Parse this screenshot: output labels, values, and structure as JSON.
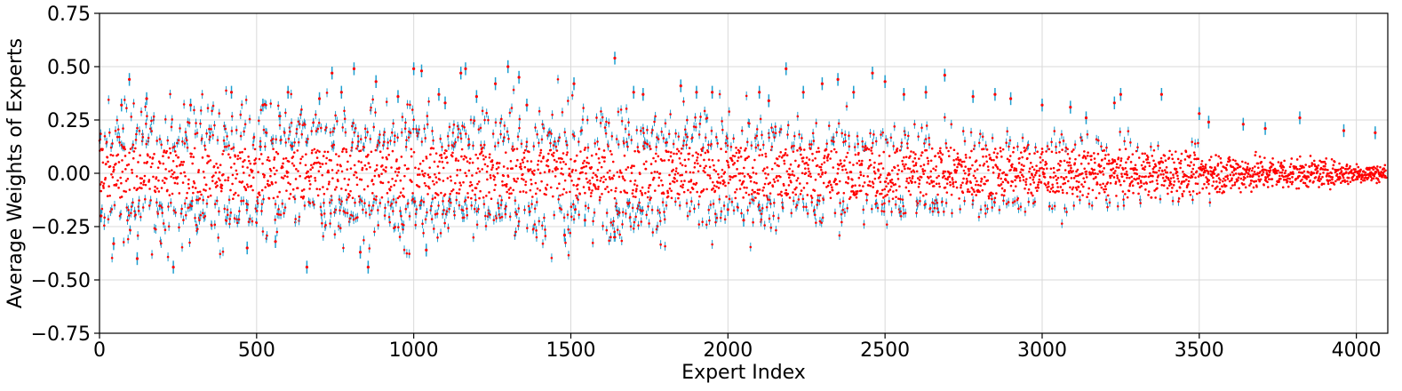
{
  "chart_data": {
    "type": "scatter",
    "title": "",
    "xlabel": "Expert Index",
    "ylabel": "Average Weights of Experts",
    "xlim": [
      0,
      4100
    ],
    "ylim": [
      -0.75,
      0.75
    ],
    "grid": true,
    "x_ticks": [
      0,
      500,
      1000,
      1500,
      2000,
      2500,
      3000,
      3500,
      4000
    ],
    "x_tick_labels": [
      "0",
      "500",
      "1000",
      "1500",
      "2000",
      "2500",
      "3000",
      "3500",
      "4000"
    ],
    "y_ticks": [
      0.75,
      0.5,
      0.25,
      0.0,
      -0.25,
      -0.5,
      -0.75
    ],
    "y_tick_labels": [
      "0.75",
      "0.50",
      "0.25",
      "0.00",
      "−0.25",
      "−0.50",
      "−0.75"
    ],
    "marker_color": "#ff0000",
    "errorbar_color": "#1f9fd0",
    "series": [
      {
        "x": [
          5,
          45,
          70,
          95,
          120,
          150,
          235,
          290,
          420,
          470,
          520,
          560,
          600,
          660,
          700,
          740,
          770,
          810,
          830,
          855,
          880,
          950,
          1000,
          1025,
          1040,
          1080,
          1100,
          1150,
          1165,
          1200,
          1260,
          1300,
          1335,
          1360,
          1480,
          1510,
          1545,
          1640,
          1700,
          1730,
          1850,
          1900,
          1950,
          2000,
          2050,
          2100,
          2130,
          2185,
          2240,
          2300,
          2350,
          2400,
          2460,
          2500,
          2560,
          2630,
          2690,
          2780,
          2850,
          2900,
          3000,
          3090,
          3140,
          3230,
          3250,
          3380,
          3500,
          3530,
          3640,
          3710,
          3820,
          3960,
          4060
        ],
        "y": [
          -0.2,
          -0.33,
          0.32,
          0.44,
          -0.4,
          0.35,
          -0.44,
          0.32,
          0.38,
          -0.35,
          0.32,
          -0.32,
          0.38,
          -0.44,
          0.35,
          0.47,
          0.38,
          0.49,
          -0.37,
          -0.44,
          0.43,
          0.36,
          0.49,
          0.48,
          -0.36,
          0.37,
          0.33,
          0.47,
          0.49,
          0.36,
          0.42,
          0.5,
          0.45,
          0.32,
          -0.29,
          0.42,
          -0.22,
          0.54,
          0.38,
          0.37,
          0.41,
          0.38,
          0.38,
          -0.17,
          -0.22,
          0.38,
          0.34,
          0.49,
          0.38,
          0.42,
          0.44,
          0.38,
          0.47,
          0.43,
          0.37,
          0.38,
          0.46,
          0.36,
          0.37,
          0.35,
          0.32,
          0.31,
          0.26,
          0.33,
          0.37,
          0.37,
          0.28,
          0.24,
          0.23,
          0.21,
          0.26,
          0.2,
          0.19
        ],
        "yerr": [
          0.03,
          0.03,
          0.03,
          0.03,
          0.03,
          0.03,
          0.03,
          0.03,
          0.03,
          0.03,
          0.03,
          0.03,
          0.03,
          0.03,
          0.03,
          0.03,
          0.03,
          0.03,
          0.03,
          0.03,
          0.03,
          0.03,
          0.03,
          0.03,
          0.03,
          0.03,
          0.03,
          0.03,
          0.03,
          0.03,
          0.03,
          0.03,
          0.03,
          0.03,
          0.03,
          0.03,
          0.03,
          0.03,
          0.03,
          0.03,
          0.03,
          0.03,
          0.03,
          0.03,
          0.03,
          0.03,
          0.03,
          0.03,
          0.03,
          0.03,
          0.03,
          0.03,
          0.03,
          0.03,
          0.03,
          0.03,
          0.03,
          0.03,
          0.03,
          0.03,
          0.03,
          0.03,
          0.03,
          0.03,
          0.03,
          0.03,
          0.03,
          0.03,
          0.03,
          0.03,
          0.03,
          0.03,
          0.03
        ]
      }
    ]
  }
}
